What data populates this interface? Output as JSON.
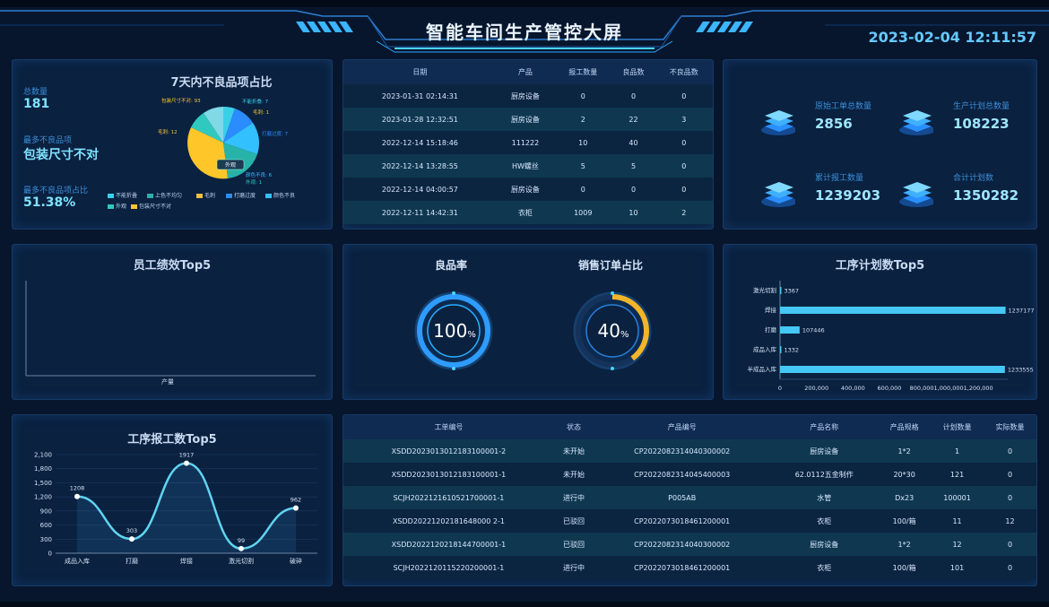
{
  "header": {
    "title": "智能车间生产管控大屏",
    "datetime": "2023-02-04 12:11:57"
  },
  "defect_panel": {
    "title": "7天内不良品项占比",
    "total_label": "总数量",
    "total_value": "181",
    "top_label": "最多不良品项",
    "top_value": "包装尺寸不对",
    "ratio_label": "最多不良品项占比",
    "ratio_value": "51.38%",
    "legend": [
      {
        "label": "不能折叠",
        "color": "#3ad0e8"
      },
      {
        "label": "上色不均匀",
        "color": "#27b3a8"
      },
      {
        "label": "毛刺",
        "color": "#f0c23a"
      },
      {
        "label": "打磨过度",
        "color": "#2a8cff"
      },
      {
        "label": "颜色不良",
        "color": "#33c0ff"
      },
      {
        "label": "外观",
        "color": "#30c9c0"
      },
      {
        "label": "包装尺寸不对",
        "color": "#ffc629"
      }
    ],
    "slice_labels": [
      "包装尺寸不对: 93",
      "不能折叠: 7",
      "毛刺: 1",
      "打磨过度: 7",
      "颜色不良: 6",
      "毛刺: 12",
      "外观: 1"
    ],
    "tooltip": "外观"
  },
  "orders_table": {
    "headers": [
      "日期",
      "产品",
      "报工数量",
      "良品数",
      "不良品数"
    ],
    "rows": [
      [
        "2023-01-31 02:14:31",
        "厨房设备",
        "0",
        "0",
        "0"
      ],
      [
        "2023-01-28 12:32:51",
        "厨房设备",
        "2",
        "22",
        "3"
      ],
      [
        "2022-12-14 15:18:46",
        "111222",
        "10",
        "40",
        "0"
      ],
      [
        "2022-12-14 13:28:55",
        "HW螺丝",
        "5",
        "5",
        "0"
      ],
      [
        "2022-12-14 04:00:57",
        "厨房设备",
        "0",
        "0",
        "0"
      ],
      [
        "2022-12-11 14:42:31",
        "衣柜",
        "1009",
        "10",
        "2"
      ]
    ]
  },
  "kpis": [
    {
      "label": "原始工单总数量",
      "value": "2856",
      "icon": "layers-icon"
    },
    {
      "label": "生产计划总数量",
      "value": "108223",
      "icon": "layers-icon"
    },
    {
      "label": "累计报工数量",
      "value": "1239203",
      "icon": "layers-icon"
    },
    {
      "label": "合计计划数",
      "value": "1350282",
      "icon": "layers-icon"
    }
  ],
  "employee_panel": {
    "title": "员工绩效Top5",
    "xlabel": "产量"
  },
  "gauges": {
    "yield_title": "良品率",
    "yield_value": "100",
    "yield_unit": "%",
    "yield_fraction": 1.0,
    "sales_title": "销售订单占比",
    "sales_value": "40",
    "sales_unit": "%",
    "sales_fraction": 0.4
  },
  "process_plan_chart": {
    "title": "工序计划数Top5",
    "chart_data": {
      "type": "bar",
      "orientation": "horizontal",
      "categories": [
        "激光切割",
        "焊接",
        "打磨",
        "成品入库",
        "半成品入库"
      ],
      "values": [
        3367,
        1237177,
        107446,
        1332,
        1233555
      ],
      "value_labels": [
        "3367",
        "1237177",
        "107446",
        "1332",
        "1233555"
      ],
      "xlim": [
        0,
        1200000
      ],
      "ticks": [
        "0",
        "200,000",
        "400,000",
        "600,000",
        "800,0001,000,0001,200,000"
      ],
      "tick_values": [
        0,
        200000,
        400000,
        600000,
        800000
      ],
      "bar_color": "#45c8f5"
    }
  },
  "process_report_chart": {
    "title": "工序报工数Top5",
    "chart_data": {
      "type": "line",
      "categories": [
        "成品入库",
        "打磨",
        "焊接",
        "激光切割",
        "破碎"
      ],
      "values": [
        1208,
        303,
        1917,
        99,
        962
      ],
      "value_labels": [
        "1208",
        "303",
        "1917",
        "99",
        "962"
      ],
      "ylim": [
        0,
        2100
      ],
      "yticks": [
        0,
        300,
        600,
        900,
        1200,
        1500,
        1800,
        2100
      ],
      "ytick_labels": [
        "0",
        "300",
        "600",
        "900",
        "1,200",
        "1,500",
        "1,800",
        "2,100"
      ],
      "line_color": "#5fd4f0"
    }
  },
  "work_orders_table": {
    "headers": [
      "工单编号",
      "状态",
      "产品编号",
      "产品名称",
      "产品规格",
      "计划数量",
      "实际数量"
    ],
    "rows": [
      [
        "XSDD2023013012183100001-2",
        "未开始",
        "CP2022082314040300002",
        "厨房设备",
        "1*2",
        "1",
        "0"
      ],
      [
        "XSDD2023013012183100001-1",
        "未开始",
        "CP2022082314045400003",
        "62.0112五金制作",
        "20*30",
        "121",
        "0"
      ],
      [
        "SCJH2022121610521700001-1",
        "进行中",
        "P005AB",
        "水管",
        "Dx23",
        "100001",
        "0"
      ],
      [
        "XSDD20221202181648000 2-1",
        "已驳回",
        "CP2022073018461200001",
        "衣柜",
        "100/箱",
        "11",
        "12"
      ],
      [
        "XSDD2022120218144700001-1",
        "已驳回",
        "CP2022082314040300002",
        "厨房设备",
        "1*2",
        "12",
        "0"
      ],
      [
        "SCJH2022120115220200001-1",
        "进行中",
        "CP2022073018461200001",
        "衣柜",
        "100/箱",
        "101",
        "0"
      ]
    ]
  }
}
